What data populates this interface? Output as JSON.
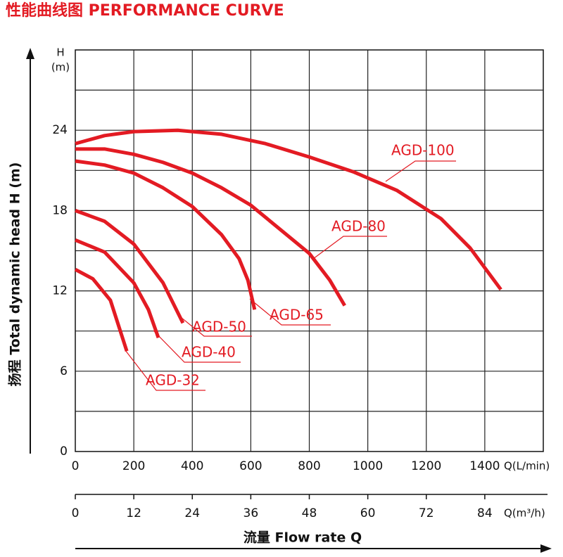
{
  "chart_data": {
    "type": "line",
    "title": "性能曲线图 PERFORMANCE CURVE",
    "y_label": "扬程 Total dynamic head H (m)",
    "y_unit_top": "H",
    "y_unit_bottom": "(m)",
    "x_label": "流量 Flow rate Q",
    "x_unit": "Q(L/min)",
    "x2_unit": "Q(m³/h)",
    "xlim": [
      0,
      1600
    ],
    "xticks": [
      0,
      200,
      400,
      600,
      800,
      1000,
      1200,
      1400
    ],
    "x_grid": [
      200,
      400,
      600,
      800,
      1000,
      1200,
      1400
    ],
    "x2lim": [
      0,
      96
    ],
    "x2ticks": [
      0,
      12,
      24,
      36,
      48,
      60,
      72,
      84
    ],
    "ylim": [
      0,
      30
    ],
    "yticks": [
      0,
      6,
      12,
      18,
      24
    ],
    "y_grid": [
      3,
      6,
      9,
      12,
      15,
      18,
      21,
      24,
      27
    ],
    "grid": true,
    "series": [
      {
        "name": "AGD-100",
        "color": "#e31b23",
        "x": [
          0,
          100,
          200,
          350,
          500,
          650,
          800,
          950,
          1100,
          1250,
          1350,
          1455
        ],
        "values": [
          23.0,
          23.6,
          23.9,
          24.0,
          23.7,
          23.0,
          22.0,
          20.9,
          19.5,
          17.4,
          15.2,
          12.1
        ]
      },
      {
        "name": "AGD-80",
        "color": "#e31b23",
        "x": [
          0,
          100,
          200,
          300,
          400,
          500,
          600,
          700,
          800,
          870,
          921
        ],
        "values": [
          22.6,
          22.6,
          22.2,
          21.6,
          20.8,
          19.7,
          18.4,
          16.6,
          14.8,
          12.8,
          10.9
        ]
      },
      {
        "name": "AGD-65",
        "color": "#e31b23",
        "x": [
          0,
          100,
          200,
          300,
          400,
          500,
          560,
          590,
          613
        ],
        "values": [
          21.7,
          21.4,
          20.8,
          19.7,
          18.3,
          16.2,
          14.4,
          12.8,
          10.6
        ]
      },
      {
        "name": "AGD-50",
        "color": "#e31b23",
        "x": [
          0,
          100,
          200,
          300,
          368
        ],
        "values": [
          18.0,
          17.2,
          15.5,
          12.6,
          9.6
        ]
      },
      {
        "name": "AGD-40",
        "color": "#e31b23",
        "x": [
          0,
          100,
          200,
          250,
          284
        ],
        "values": [
          15.8,
          14.9,
          12.6,
          10.6,
          8.5
        ]
      },
      {
        "name": "AGD-32",
        "color": "#e31b23",
        "x": [
          0,
          60,
          120,
          176
        ],
        "values": [
          13.6,
          12.9,
          11.3,
          7.5
        ]
      }
    ]
  }
}
